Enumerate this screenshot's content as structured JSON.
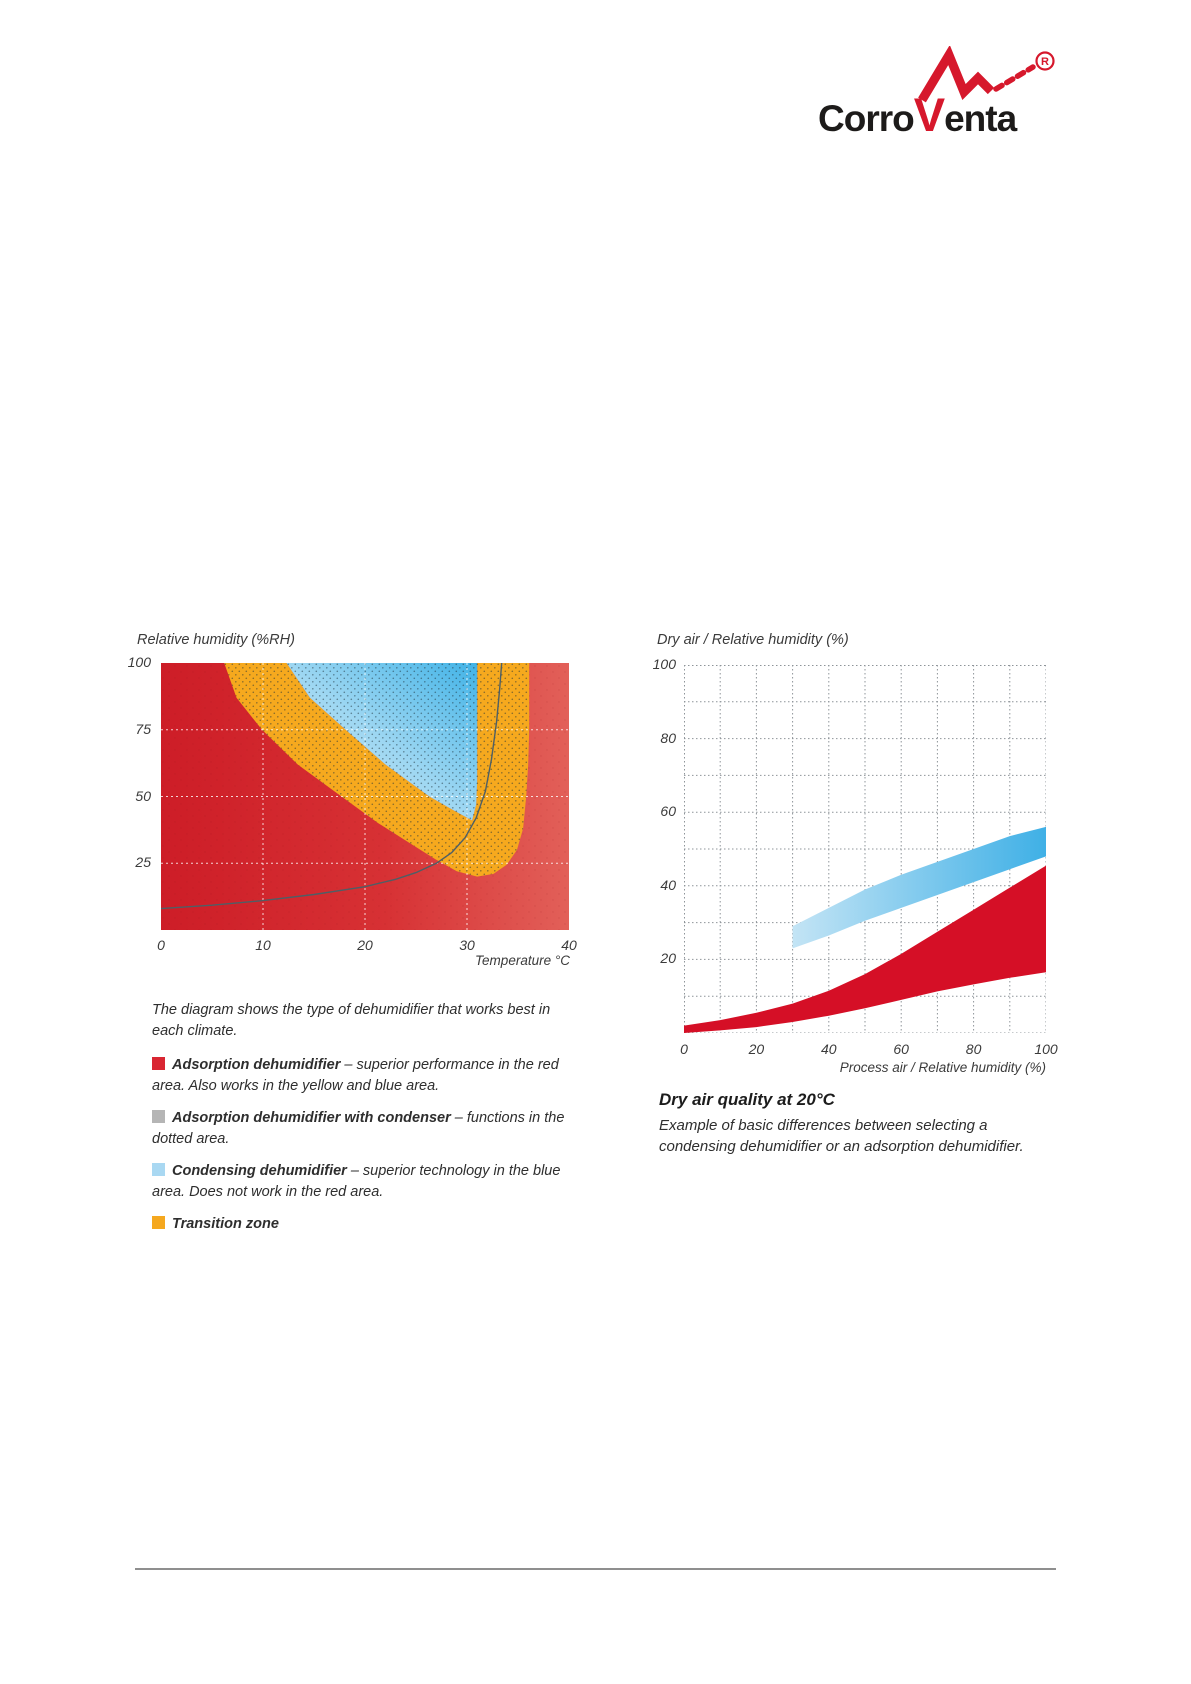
{
  "logo": {
    "part1": "Corro",
    "part2": "V",
    "part3": "enta",
    "registered_letter": "R",
    "brand_red": "#d6182c",
    "brand_black": "#1d1b1a"
  },
  "left_figure": {
    "title": "Relative humidity (%RH)",
    "x_axis_label": "Temperature °C",
    "legend_intro": "The diagram shows the type of dehumidifier that works best in each climate.",
    "legend": [
      {
        "swatch": "#d92632",
        "name": "Adsorption dehumidifier",
        "desc": "– superior performance in the red area. Also works in the yellow and blue area."
      },
      {
        "swatch": "#b5b5b5",
        "name": "Adsorption dehumidifier with condenser",
        "desc": "– functions in the dotted area."
      },
      {
        "swatch": "#a9d8f2",
        "name": "Condensing dehumidifier",
        "desc": "– superior technology in the blue area. Does not work in the red area."
      },
      {
        "swatch": "#f5a81f",
        "name": "Transition zone",
        "desc": ""
      }
    ]
  },
  "right_figure": {
    "title": "Dry air / Relative humidity (%)",
    "x_axis_label": "Process air / Relative humidity (%)",
    "caption_title": "Dry air quality at 20°C",
    "caption_body": "Example of basic differences between selecting a condensing dehumidifier or an adsorption dehumidifier."
  },
  "chart_data": [
    {
      "type": "area",
      "title": "Relative humidity (%RH)",
      "xlabel": "Temperature °C",
      "ylabel": "Relative humidity (%RH)",
      "xlim": [
        0,
        40
      ],
      "ylim": [
        0,
        100
      ],
      "x_ticks": [
        0,
        10,
        20,
        30,
        40
      ],
      "y_ticks": [
        25,
        50,
        75,
        100
      ],
      "grid": "white dashed, inside plot",
      "colors": {
        "adsorption_red_left": "#cd1d27",
        "adsorption_red_right": "#e26059",
        "transition_yellow": "#f6a91e",
        "condensing_blue_light": "#d6eefa",
        "condensing_blue_dark": "#41b3e7",
        "dots": "#1c2f38",
        "equilibrium_curve": "#4e5f66"
      },
      "regions": {
        "adsorption_red": "entire plot background (gradient left to right)",
        "transition_zone_outer_boundary": [
          [
            6.2,
            100
          ],
          [
            7.4,
            87
          ],
          [
            9.9,
            75
          ],
          [
            13.4,
            62
          ],
          [
            17.7,
            50
          ],
          [
            21.3,
            40
          ],
          [
            24.2,
            33
          ],
          [
            26.9,
            26.5
          ],
          [
            29,
            22
          ],
          [
            31,
            20
          ],
          [
            32.6,
            21
          ],
          [
            33.9,
            24.5
          ],
          [
            34.9,
            30
          ],
          [
            35.5,
            38
          ],
          [
            35.8,
            50
          ],
          [
            36,
            62
          ],
          [
            36.1,
            75
          ],
          [
            36.1,
            100
          ]
        ],
        "condensing_zone_boundary": [
          [
            12.3,
            100
          ],
          [
            14.6,
            87
          ],
          [
            18.1,
            75
          ],
          [
            22,
            62
          ],
          [
            26.3,
            50
          ],
          [
            28.7,
            44.8
          ],
          [
            30.5,
            41
          ],
          [
            30.9,
            47
          ],
          [
            31,
            56
          ],
          [
            31,
            75
          ],
          [
            31,
            100
          ]
        ],
        "dotted_condenser_zone": "covers transition zone band plus condensing wedge"
      },
      "equilibrium_curve_points": [
        [
          0,
          8
        ],
        [
          5,
          9.3
        ],
        [
          10,
          11
        ],
        [
          15,
          13.3
        ],
        [
          20,
          16.2
        ],
        [
          23,
          19
        ],
        [
          25,
          21.5
        ],
        [
          27,
          25
        ],
        [
          28.5,
          29
        ],
        [
          29.8,
          34.5
        ],
        [
          30.9,
          42
        ],
        [
          31.8,
          52
        ],
        [
          32.4,
          64
        ],
        [
          32.9,
          78
        ],
        [
          33.2,
          90
        ],
        [
          33.4,
          100
        ]
      ]
    },
    {
      "type": "area",
      "title": "Dry air / Relative humidity (%)",
      "xlabel": "Process air / Relative humidity (%)",
      "xlim": [
        0,
        100
      ],
      "ylim": [
        0,
        100
      ],
      "x_ticks": [
        0,
        20,
        40,
        60,
        80,
        100
      ],
      "y_ticks": [
        20,
        40,
        60,
        80,
        100
      ],
      "grid_step": 10,
      "grid": "gray dotted every 10 units",
      "series": [
        {
          "name": "condensing dehumidifier band",
          "color_start": "#c3e4f5",
          "color_end": "#3fb0e6",
          "x": [
            30,
            40,
            50,
            60,
            70,
            80,
            90,
            100
          ],
          "top": [
            29,
            34,
            39,
            43,
            46.5,
            50,
            53.5,
            56
          ],
          "bottom": [
            23,
            26.5,
            30.5,
            34,
            37.5,
            41,
            44.5,
            48
          ]
        },
        {
          "name": "adsorption dehumidifier band",
          "color": "#d50f26",
          "x": [
            0,
            10,
            20,
            30,
            40,
            50,
            60,
            70,
            80,
            90,
            100
          ],
          "top": [
            2,
            3.5,
            5.5,
            8,
            11.5,
            16,
            21.5,
            27.5,
            33.5,
            39.5,
            45.5
          ],
          "bottom": [
            0,
            0.7,
            1.6,
            3,
            4.7,
            6.7,
            9,
            11.3,
            13.2,
            15,
            16.5
          ]
        }
      ]
    }
  ]
}
